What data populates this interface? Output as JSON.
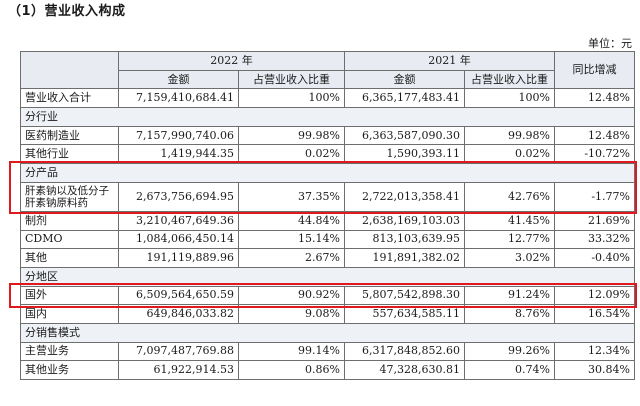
{
  "heading": "（1）营业收入构成",
  "unit": "单位：元",
  "header": {
    "year_2022": "2022 年",
    "year_2021": "2021 年",
    "yoy": "同比增减",
    "amount": "金额",
    "share": "占营业收入比重"
  },
  "rows": [
    {
      "label": "营业收入合计",
      "a22": "7,159,410,684.41",
      "p22": "100%",
      "a21": "6,365,177,483.41",
      "p21": "100%",
      "yoy": "12.48%"
    },
    {
      "section": "分行业"
    },
    {
      "label": "医药制造业",
      "a22": "7,157,990,740.06",
      "p22": "99.98%",
      "a21": "6,363,587,090.30",
      "p21": "99.98%",
      "yoy": "12.48%"
    },
    {
      "label": "其他行业",
      "a22": "1,419,944.35",
      "p22": "0.02%",
      "a21": "1,590,393.11",
      "p21": "0.02%",
      "yoy": "-10.72%"
    },
    {
      "section": "分产品"
    },
    {
      "label": "肝素钠以及低分子肝素钠原料药",
      "a22": "2,673,756,694.95",
      "p22": "37.35%",
      "a21": "2,722,013,358.41",
      "p21": "42.76%",
      "yoy": "-1.77%"
    },
    {
      "label": "制剂",
      "a22": "3,210,467,649.36",
      "p22": "44.84%",
      "a21": "2,638,169,103.03",
      "p21": "41.45%",
      "yoy": "21.69%"
    },
    {
      "label": "CDMO",
      "a22": "1,084,066,450.14",
      "p22": "15.14%",
      "a21": "813,103,639.95",
      "p21": "12.77%",
      "yoy": "33.32%"
    },
    {
      "label": "其他",
      "a22": "191,119,889.96",
      "p22": "2.67%",
      "a21": "191,891,382.02",
      "p21": "3.02%",
      "yoy": "-0.40%"
    },
    {
      "section": "分地区"
    },
    {
      "label": "国外",
      "a22": "6,509,564,650.59",
      "p22": "90.92%",
      "a21": "5,807,542,898.30",
      "p21": "91.24%",
      "yoy": "12.09%"
    },
    {
      "label": "国内",
      "a22": "649,846,033.82",
      "p22": "9.08%",
      "a21": "557,634,585.11",
      "p21": "8.76%",
      "yoy": "16.54%"
    },
    {
      "section": "分销售模式"
    },
    {
      "label": "主营业务",
      "a22": "7,097,487,769.88",
      "p22": "99.14%",
      "a21": "6,317,848,852.60",
      "p21": "99.26%",
      "yoy": "12.34%"
    },
    {
      "label": "其他业务",
      "a22": "61,922,914.53",
      "p22": "0.86%",
      "a21": "47,328,630.81",
      "p21": "0.74%",
      "yoy": "30.84%"
    }
  ],
  "highlight_color": "#e0191f"
}
